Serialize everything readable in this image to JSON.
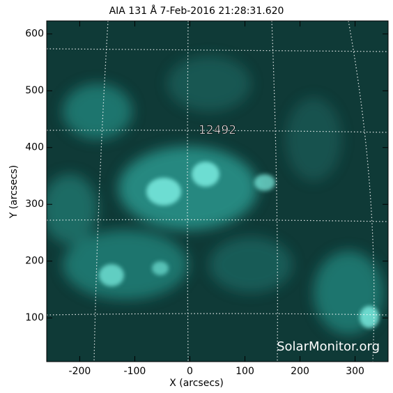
{
  "chart_data": {
    "type": "image",
    "title": "AIA 131 Å  7-Feb-2016 21:28:31.620",
    "x_label": "X (arcsecs)",
    "y_label": "Y (arcsecs)",
    "xlim": [
      -260,
      360
    ],
    "ylim": [
      23,
      623
    ],
    "xticks": [
      -200,
      -100,
      0,
      100,
      200,
      300
    ],
    "yticks": [
      100,
      200,
      300,
      400,
      500,
      600
    ],
    "annotation": "12492",
    "watermark": "SolarMonitor.org"
  }
}
